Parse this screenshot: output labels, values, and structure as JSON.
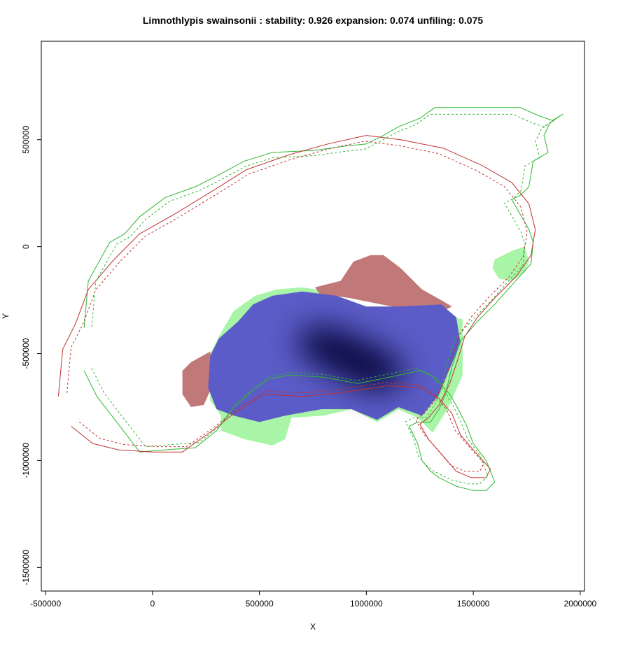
{
  "chart_data": {
    "type": "map",
    "title": "Limnothlypis swainsonii : stability: 0.926 expansion: 0.074 unfiling: 0.075",
    "xlabel": "X",
    "ylabel": "Y",
    "xlim": [
      -520000,
      2020000
    ],
    "ylim": [
      -1610000,
      960000
    ],
    "xticks": [
      -500000,
      0,
      500000,
      1000000,
      1500000,
      2000000
    ],
    "xtick_labels": [
      "-500000",
      "0",
      "500000",
      "1000000",
      "1500000",
      "2000000"
    ],
    "yticks": [
      -1500000,
      -1000000,
      -500000,
      0,
      500000
    ],
    "ytick_labels": [
      "-1500000",
      "-1000000",
      "-500000",
      "0",
      "500000"
    ],
    "colors": {
      "stability": "#5c5cc8",
      "stability_core": "#000033",
      "expansion_red": "#c07878",
      "expansion_green": "#a8f5a8",
      "green_line": "#2eb82e",
      "red_line": "#c03030"
    },
    "regions": {
      "green_fill": [
        [
          580000,
          -200000
        ],
        [
          700000,
          -190000
        ],
        [
          820000,
          -210000
        ],
        [
          1000000,
          -300000
        ],
        [
          1200000,
          -330000
        ],
        [
          1380000,
          -320000
        ],
        [
          1450000,
          -340000
        ],
        [
          1450000,
          -600000
        ],
        [
          1380000,
          -760000
        ],
        [
          1310000,
          -870000
        ],
        [
          1240000,
          -800000
        ],
        [
          1150000,
          -760000
        ],
        [
          1050000,
          -820000
        ],
        [
          930000,
          -760000
        ],
        [
          800000,
          -790000
        ],
        [
          650000,
          -800000
        ],
        [
          620000,
          -900000
        ],
        [
          560000,
          -930000
        ],
        [
          430000,
          -900000
        ],
        [
          320000,
          -860000
        ],
        [
          320000,
          -790000
        ],
        [
          270000,
          -720000
        ],
        [
          260000,
          -520000
        ],
        [
          310000,
          -420000
        ],
        [
          380000,
          -300000
        ],
        [
          480000,
          -230000
        ]
      ],
      "green_patch_east": [
        [
          1600000,
          -60000
        ],
        [
          1680000,
          -20000
        ],
        [
          1740000,
          0
        ],
        [
          1760000,
          -70000
        ],
        [
          1740000,
          -120000
        ],
        [
          1680000,
          -160000
        ],
        [
          1620000,
          -150000
        ],
        [
          1590000,
          -100000
        ]
      ],
      "red_fill": [
        [
          760000,
          -190000
        ],
        [
          880000,
          -160000
        ],
        [
          940000,
          -70000
        ],
        [
          1020000,
          -40000
        ],
        [
          1080000,
          -40000
        ],
        [
          1160000,
          -100000
        ],
        [
          1260000,
          -200000
        ],
        [
          1350000,
          -250000
        ],
        [
          1400000,
          -280000
        ],
        [
          1340000,
          -310000
        ],
        [
          1120000,
          -280000
        ],
        [
          920000,
          -240000
        ],
        [
          780000,
          -220000
        ]
      ],
      "red_fill_west": [
        [
          270000,
          -490000
        ],
        [
          180000,
          -540000
        ],
        [
          140000,
          -580000
        ],
        [
          140000,
          -690000
        ],
        [
          180000,
          -750000
        ],
        [
          240000,
          -740000
        ],
        [
          280000,
          -650000
        ]
      ],
      "blue_fill": [
        [
          560000,
          -230000
        ],
        [
          700000,
          -210000
        ],
        [
          860000,
          -230000
        ],
        [
          1000000,
          -280000
        ],
        [
          1150000,
          -280000
        ],
        [
          1350000,
          -270000
        ],
        [
          1420000,
          -330000
        ],
        [
          1440000,
          -450000
        ],
        [
          1390000,
          -570000
        ],
        [
          1340000,
          -690000
        ],
        [
          1260000,
          -790000
        ],
        [
          1150000,
          -750000
        ],
        [
          1050000,
          -810000
        ],
        [
          930000,
          -760000
        ],
        [
          790000,
          -760000
        ],
        [
          620000,
          -790000
        ],
        [
          500000,
          -820000
        ],
        [
          380000,
          -790000
        ],
        [
          300000,
          -760000
        ],
        [
          260000,
          -660000
        ],
        [
          270000,
          -510000
        ],
        [
          310000,
          -430000
        ],
        [
          400000,
          -350000
        ],
        [
          470000,
          -270000
        ]
      ],
      "core_fill": [
        [
          700000,
          -380000
        ],
        [
          820000,
          -370000
        ],
        [
          950000,
          -420000
        ],
        [
          1080000,
          -480000
        ],
        [
          1180000,
          -560000
        ],
        [
          1150000,
          -650000
        ],
        [
          1030000,
          -680000
        ],
        [
          900000,
          -620000
        ],
        [
          780000,
          -560000
        ],
        [
          680000,
          -480000
        ]
      ]
    },
    "lines": {
      "green_solid": [
        [
          -320000,
          -380000
        ],
        [
          -300000,
          -160000
        ],
        [
          -200000,
          20000
        ],
        [
          -130000,
          60000
        ],
        [
          -60000,
          140000
        ],
        [
          60000,
          230000
        ],
        [
          200000,
          280000
        ],
        [
          300000,
          330000
        ],
        [
          430000,
          400000
        ],
        [
          560000,
          440000
        ],
        [
          760000,
          450000
        ],
        [
          900000,
          470000
        ],
        [
          1000000,
          480000
        ],
        [
          1080000,
          520000
        ],
        [
          1150000,
          560000
        ],
        [
          1250000,
          600000
        ],
        [
          1320000,
          650000
        ],
        [
          1720000,
          650000
        ],
        [
          1810000,
          610000
        ],
        [
          1870000,
          590000
        ],
        [
          1920000,
          620000
        ],
        [
          1860000,
          580000
        ],
        [
          1830000,
          520000
        ],
        [
          1850000,
          440000
        ],
        [
          1780000,
          400000
        ],
        [
          1760000,
          280000
        ],
        [
          1720000,
          240000
        ],
        [
          1680000,
          220000
        ],
        [
          1720000,
          150000
        ],
        [
          1760000,
          80000
        ],
        [
          1780000,
          20000
        ],
        [
          1770000,
          -80000
        ],
        [
          1680000,
          -180000
        ],
        [
          1600000,
          -270000
        ],
        [
          1520000,
          -350000
        ],
        [
          1440000,
          -440000
        ],
        [
          1400000,
          -560000
        ],
        [
          1370000,
          -690000
        ],
        [
          1340000,
          -760000
        ],
        [
          1300000,
          -820000
        ],
        [
          1240000,
          -820000
        ],
        [
          1200000,
          -840000
        ],
        [
          1240000,
          -920000
        ],
        [
          1260000,
          -1000000
        ],
        [
          1300000,
          -1050000
        ],
        [
          1340000,
          -1080000
        ],
        [
          1420000,
          -1120000
        ],
        [
          1500000,
          -1140000
        ],
        [
          1560000,
          -1140000
        ],
        [
          1600000,
          -1100000
        ],
        [
          1560000,
          -1000000
        ],
        [
          1500000,
          -920000
        ],
        [
          1470000,
          -840000
        ],
        [
          1430000,
          -760000
        ],
        [
          1390000,
          -690000
        ],
        [
          1320000,
          -610000
        ],
        [
          1250000,
          -580000
        ],
        [
          1060000,
          -620000
        ],
        [
          960000,
          -640000
        ],
        [
          800000,
          -610000
        ],
        [
          640000,
          -600000
        ],
        [
          540000,
          -620000
        ],
        [
          460000,
          -680000
        ],
        [
          380000,
          -750000
        ],
        [
          300000,
          -860000
        ],
        [
          200000,
          -940000
        ],
        [
          60000,
          -950000
        ],
        [
          -60000,
          -960000
        ],
        [
          -160000,
          -830000
        ],
        [
          -260000,
          -700000
        ],
        [
          -320000,
          -580000
        ]
      ],
      "red_solid": [
        [
          -440000,
          -700000
        ],
        [
          -420000,
          -480000
        ],
        [
          -360000,
          -360000
        ],
        [
          -300000,
          -200000
        ],
        [
          -180000,
          -60000
        ],
        [
          -60000,
          60000
        ],
        [
          100000,
          150000
        ],
        [
          280000,
          260000
        ],
        [
          440000,
          360000
        ],
        [
          640000,
          430000
        ],
        [
          820000,
          480000
        ],
        [
          1000000,
          520000
        ],
        [
          1160000,
          500000
        ],
        [
          1360000,
          460000
        ],
        [
          1540000,
          380000
        ],
        [
          1680000,
          300000
        ],
        [
          1760000,
          200000
        ],
        [
          1790000,
          80000
        ],
        [
          1770000,
          -40000
        ],
        [
          1700000,
          -140000
        ],
        [
          1600000,
          -240000
        ],
        [
          1520000,
          -330000
        ],
        [
          1460000,
          -420000
        ],
        [
          1430000,
          -520000
        ],
        [
          1390000,
          -640000
        ],
        [
          1340000,
          -740000
        ],
        [
          1290000,
          -800000
        ],
        [
          1250000,
          -830000
        ],
        [
          1290000,
          -900000
        ],
        [
          1360000,
          -980000
        ],
        [
          1420000,
          -1050000
        ],
        [
          1490000,
          -1080000
        ],
        [
          1560000,
          -1080000
        ],
        [
          1580000,
          -1040000
        ],
        [
          1500000,
          -950000
        ],
        [
          1440000,
          -880000
        ],
        [
          1400000,
          -780000
        ],
        [
          1340000,
          -710000
        ],
        [
          1260000,
          -660000
        ],
        [
          1100000,
          -650000
        ],
        [
          900000,
          -680000
        ],
        [
          700000,
          -700000
        ],
        [
          520000,
          -690000
        ],
        [
          380000,
          -780000
        ],
        [
          280000,
          -860000
        ],
        [
          140000,
          -960000
        ],
        [
          0,
          -960000
        ],
        [
          -160000,
          -950000
        ],
        [
          -280000,
          -920000
        ],
        [
          -380000,
          -840000
        ]
      ]
    }
  }
}
